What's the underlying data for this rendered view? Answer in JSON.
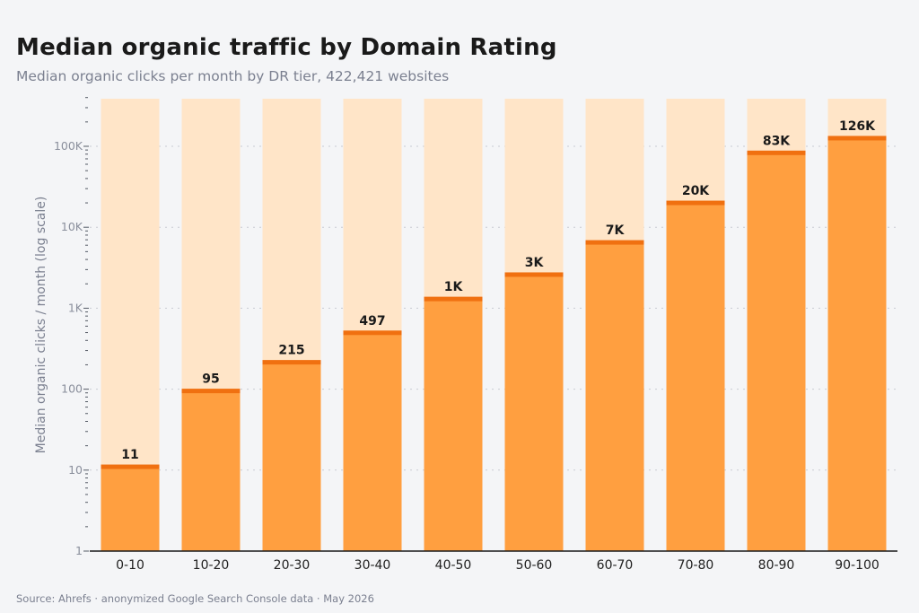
{
  "header": {
    "title": "Median organic traffic by Domain Rating",
    "subtitle": "Median organic clicks per month by DR tier, 422,421 websites"
  },
  "footer": {
    "source": "Source: Ahrefs · anonymized Google Search Console data · May 2026"
  },
  "colors": {
    "bar": "#ff9f40",
    "bar_cap": "#f07010",
    "bar_background": "#ffe5c8",
    "grid": "#c9ccd3",
    "axis": "#1a1a1a"
  },
  "chart_data": {
    "type": "bar",
    "title": "Median organic traffic by Domain Rating",
    "subtitle": "Median organic clicks per month by DR tier, 422,421 websites",
    "xlabel": "",
    "ylabel": "Median organic clicks / month (log scale)",
    "yscale": "log",
    "ylim": [
      1,
      400000
    ],
    "grid": true,
    "y_ticks": [
      1,
      10,
      100,
      1000,
      10000,
      100000
    ],
    "y_tick_labels": [
      "1",
      "10",
      "100",
      "1K",
      "10K",
      "100K"
    ],
    "categories": [
      "0-10",
      "10-20",
      "20-30",
      "30-40",
      "40-50",
      "50-60",
      "60-70",
      "70-80",
      "80-90",
      "90-100"
    ],
    "values": [
      11,
      95,
      215,
      497,
      1300,
      2600,
      6500,
      20000,
      83000,
      126000
    ],
    "data_labels": [
      "11",
      "95",
      "215",
      "497",
      "1K",
      "3K",
      "7K",
      "20K",
      "83K",
      "126K"
    ]
  }
}
